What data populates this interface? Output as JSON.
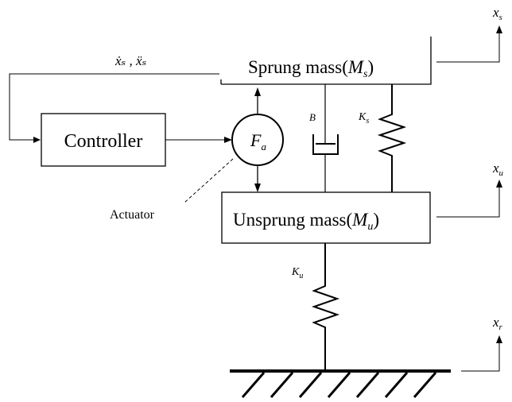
{
  "blocks": {
    "sprung": {
      "prefix": "Sprung mass(",
      "symbol": "M",
      "sub": "s",
      "suffix": ")"
    },
    "unsprung": {
      "prefix": "Unsprung mass(",
      "symbol": "M",
      "sub": "u",
      "suffix": ")"
    },
    "controller": {
      "label": "Controller"
    }
  },
  "actuator": {
    "symbol": "F",
    "sub": "a",
    "label": "Actuator"
  },
  "damper": {
    "label": "B"
  },
  "springs": {
    "suspension": {
      "symbol": "K",
      "sub": "s"
    },
    "tire": {
      "symbol": "K",
      "sub": "u"
    }
  },
  "feedback": {
    "label": "ẋₛ , ẍₛ"
  },
  "displacements": {
    "sprung": {
      "symbol": "x",
      "sub": "s"
    },
    "unsprung": {
      "symbol": "x",
      "sub": "u"
    },
    "road": {
      "symbol": "x",
      "sub": "r"
    }
  }
}
